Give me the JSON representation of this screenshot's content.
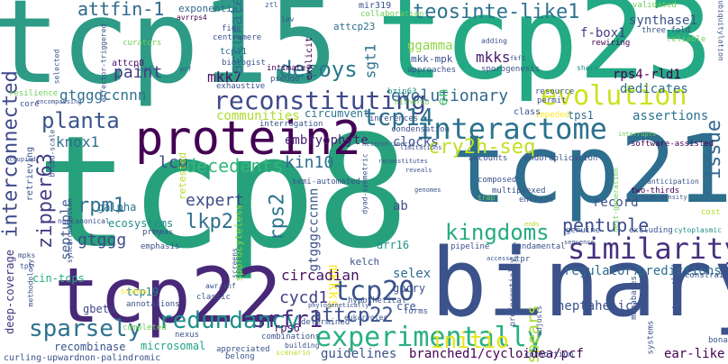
{
  "title": "",
  "palette": {
    "dark_purple": "#440154",
    "purple": "#482878",
    "indigo": "#3e4a89",
    "blue": "#31688e",
    "teal": "#26828e",
    "teal_green": "#1f9e89",
    "green": "#35b779",
    "light_green": "#6ece58",
    "yellow_green": "#b5de2b",
    "yellow": "#fde725"
  },
  "words": [
    {
      "id": "w1",
      "text": "tcp8",
      "color": "#26a17c"
    },
    {
      "id": "w2",
      "text": "tcp15",
      "color": "#2d9b86"
    },
    {
      "id": "w3",
      "text": "tcp23",
      "color": "#23a983"
    },
    {
      "id": "w4",
      "text": "tcp21",
      "color": "#2e6e8e"
    },
    {
      "id": "w5",
      "text": "binary",
      "color": "#3b528b"
    },
    {
      "id": "w6",
      "text": "tcp22",
      "color": "#482878"
    },
    {
      "id": "w7",
      "text": "protein2",
      "color": "#440154"
    },
    {
      "id": "w8",
      "text": "similarity",
      "color": "#46307e"
    },
    {
      "id": "w9",
      "text": "experimentally",
      "color": "#2ab07f"
    },
    {
      "id": "w10",
      "text": "reconstituting",
      "color": "#3e4a89"
    },
    {
      "id": "w11",
      "text": "interactome",
      "color": "#2c728e"
    },
    {
      "id": "w12",
      "text": "evolution",
      "color": "#cde11d"
    },
    {
      "id": "w13",
      "text": "teosinte-like1",
      "color": "#2c738e"
    },
    {
      "id": "w14",
      "text": "tcp14",
      "color": "#2d718e"
    },
    {
      "id": "w15",
      "text": "tcp20",
      "color": "#3b528b"
    },
    {
      "id": "w16",
      "text": "redundancy",
      "color": "#21908c"
    },
    {
      "id": "w17",
      "text": "srfr1",
      "color": "#4a2a80"
    },
    {
      "id": "w18",
      "text": "attcp22",
      "color": "#3b518b"
    },
    {
      "id": "w19",
      "text": "sparsely",
      "color": "#2c728e"
    },
    {
      "id": "w20",
      "text": "kingdoms",
      "color": "#25ab82"
    },
    {
      "id": "w21",
      "text": "pentuple",
      "color": "#3d4e8a"
    },
    {
      "id": "w22",
      "text": "cry2h-seq",
      "color": "#c2df23"
    },
    {
      "id": "w23",
      "text": "decedents",
      "color": "#35b779"
    },
    {
      "id": "w24",
      "text": "zipper63",
      "color": "#433e85"
    },
    {
      "id": "w25",
      "text": "interconnected",
      "color": "#3e4989"
    },
    {
      "id": "w26",
      "text": "planta",
      "color": "#39568c"
    },
    {
      "id": "w27",
      "text": "decoys",
      "color": "#2a778e"
    },
    {
      "id": "w28",
      "text": "attfin-1",
      "color": "#31688e"
    },
    {
      "id": "w29",
      "text": "issue",
      "color": "#31688e"
    },
    {
      "id": "w30",
      "text": "initio",
      "color": "#e5e419"
    },
    {
      "id": "w31",
      "text": "lkp2",
      "color": "#2d708e"
    },
    {
      "id": "w32",
      "text": "rps2",
      "color": "#2c738e"
    },
    {
      "id": "w33",
      "text": "rpm1",
      "color": "#2e6f8e"
    },
    {
      "id": "w34",
      "text": "expert",
      "color": "#3e4989"
    },
    {
      "id": "w35",
      "text": "gtgggcccnnn",
      "color": "#3b528b"
    },
    {
      "id": "w36",
      "text": "gtgggccnnn",
      "color": "#2d718e"
    },
    {
      "id": "w37",
      "text": "gtggg",
      "color": "#3e4a89"
    },
    {
      "id": "w38",
      "text": "mkk7",
      "color": "#471063"
    },
    {
      "id": "w39",
      "text": "mkks",
      "color": "#481b6d"
    },
    {
      "id": "w40",
      "text": "mkkks",
      "color": "#fde725"
    },
    {
      "id": "w41",
      "text": "paint",
      "color": "#443a83"
    },
    {
      "id": "w42",
      "text": "accurate",
      "color": "#2d718e"
    },
    {
      "id": "w43",
      "text": "lcu",
      "color": "#3f4788"
    },
    {
      "id": "w44",
      "text": "kin10",
      "color": "#2e6e8e"
    },
    {
      "id": "w45",
      "text": "knox1",
      "color": "#2e6e8e"
    },
    {
      "id": "w46",
      "text": "embryophyte",
      "color": "#482173"
    },
    {
      "id": "w47",
      "text": "cycd1",
      "color": "#433e85"
    },
    {
      "id": "w48",
      "text": "spears",
      "color": "#a8db34"
    },
    {
      "id": "w49",
      "text": "circadian",
      "color": "#471365"
    },
    {
      "id": "w50",
      "text": "record",
      "color": "#3b528b"
    },
    {
      "id": "w51",
      "text": "septuple",
      "color": "#39568c"
    },
    {
      "id": "w52",
      "text": "evolutionary",
      "color": "#31688e"
    },
    {
      "id": "w53",
      "text": "assertions",
      "color": "#2c728e"
    },
    {
      "id": "w54",
      "text": "communities",
      "color": "#addc30"
    },
    {
      "id": "w55",
      "text": "sgt1",
      "color": "#2c728e"
    },
    {
      "id": "w56",
      "text": "ggamma",
      "color": "#8ed645"
    },
    {
      "id": "w57",
      "text": "rps4-rld1",
      "color": "#440154"
    },
    {
      "id": "w58",
      "text": "synthase1",
      "color": "#3b528b"
    },
    {
      "id": "w59",
      "text": "f-box1",
      "color": "#433e85"
    },
    {
      "id": "w60",
      "text": "dedicates",
      "color": "#2e6e8e"
    },
    {
      "id": "w61",
      "text": "tps1",
      "color": "#2e6e8e"
    },
    {
      "id": "w62",
      "text": "clocks",
      "color": "#3a538b"
    },
    {
      "id": "w63",
      "text": "selex",
      "color": "#2f6c8e"
    },
    {
      "id": "w64",
      "text": "arr16",
      "color": "#21918c"
    },
    {
      "id": "w65",
      "text": "regulator7",
      "color": "#31688e"
    },
    {
      "id": "w66",
      "text": "predictions",
      "color": "#2e6e8e"
    },
    {
      "id": "w67",
      "text": "heptahelical",
      "color": "#3b528b"
    },
    {
      "id": "w68",
      "text": "ear-like",
      "color": "#440154"
    },
    {
      "id": "w69",
      "text": "branched1/cycloidea/pcf",
      "color": "#440154"
    },
    {
      "id": "w70",
      "text": "guidelines",
      "color": "#3b528b"
    },
    {
      "id": "w71",
      "text": "microsomal",
      "color": "#20a386"
    },
    {
      "id": "w72",
      "text": "recombinase",
      "color": "#39558c"
    },
    {
      "id": "w73",
      "text": "curling-upward",
      "color": "#3b528b"
    },
    {
      "id": "w74",
      "text": "non-palindromic",
      "color": "#3b528b"
    },
    {
      "id": "w75",
      "text": "deep-coverage",
      "color": "#46337e"
    },
    {
      "id": "w76",
      "text": "cin-tcps",
      "color": "#25ac82"
    },
    {
      "id": "w77",
      "text": "gbeta",
      "color": "#404688"
    },
    {
      "id": "w78",
      "text": "attcp23",
      "color": "#2e6e8e"
    },
    {
      "id": "w79",
      "text": "attcp8",
      "color": "#471063"
    },
    {
      "id": "w80",
      "text": "tcp11",
      "color": "#2c728e"
    },
    {
      "id": "w81",
      "text": "mkk-mpk",
      "color": "#3b528b"
    },
    {
      "id": "w82",
      "text": "ecosystems",
      "color": "#228c8d"
    },
    {
      "id": "w83",
      "text": "galpha",
      "color": "#2c728e"
    },
    {
      "id": "w84",
      "text": "retrieving",
      "color": "#3b528b"
    },
    {
      "id": "w85",
      "text": "tcp19",
      "color": "#26818e"
    },
    {
      "id": "w86",
      "text": "ab",
      "color": "#3b528b"
    },
    {
      "id": "w87",
      "text": "en",
      "color": "#48c16e"
    },
    {
      "id": "w88",
      "text": "cre",
      "color": "#3b528b"
    },
    {
      "id": "w89",
      "text": "rps6",
      "color": "#48186a"
    },
    {
      "id": "w90",
      "text": "kelch",
      "color": "#3b528b"
    },
    {
      "id": "w91",
      "text": "gpcry",
      "color": "#3b528b"
    },
    {
      "id": "w92",
      "text": "hypothetical",
      "color": "#3b528b"
    },
    {
      "id": "w93",
      "text": "sporocyteless",
      "color": "#8bd646"
    },
    {
      "id": "w94",
      "text": "exponential",
      "color": "#31688e"
    },
    {
      "id": "w95",
      "text": "mir319",
      "color": "#3b528b"
    },
    {
      "id": "w96",
      "text": "collaboration",
      "color": "#6ece58"
    },
    {
      "id": "w97",
      "text": "explicit",
      "color": "#440154"
    },
    {
      "id": "w98",
      "text": "circumvent",
      "color": "#2c728e"
    },
    {
      "id": "w99",
      "text": "retested",
      "color": "#b5de2b"
    },
    {
      "id": "w100",
      "text": "validated",
      "color": "#6ece58"
    },
    {
      "id": "w101",
      "text": "three-fold",
      "color": "#3b528b"
    },
    {
      "id": "w102",
      "text": "reliable",
      "color": "#6ece58"
    },
    {
      "id": "w103",
      "text": "rewiring",
      "color": "#440154"
    },
    {
      "id": "w104",
      "text": "share",
      "color": "#21908c"
    },
    {
      "id": "w105",
      "text": "adding",
      "color": "#3b528b"
    },
    {
      "id": "w106",
      "text": "sporogenesis",
      "color": "#3b528b"
    },
    {
      "id": "w107",
      "text": "approaches",
      "color": "#3b528b"
    },
    {
      "id": "w108",
      "text": "intimate",
      "color": "#440154"
    },
    {
      "id": "w109",
      "text": "pseudo",
      "color": "#3b528b"
    },
    {
      "id": "w110",
      "text": "fide",
      "color": "#3b528b"
    },
    {
      "id": "w111",
      "text": "biologist",
      "color": "#3b528b"
    },
    {
      "id": "w112",
      "text": "centromere",
      "color": "#3b528b"
    },
    {
      "id": "w113",
      "text": "curators",
      "color": "#6ece58"
    },
    {
      "id": "w114",
      "text": "effector-triggered",
      "color": "#3b528b"
    },
    {
      "id": "w115",
      "text": "avrrps4",
      "color": "#440154"
    },
    {
      "id": "w116",
      "text": "exhaustive",
      "color": "#3b528b"
    },
    {
      "id": "w117",
      "text": "selected",
      "color": "#3b528b"
    },
    {
      "id": "w118",
      "text": "resilience",
      "color": "#6ece58"
    },
    {
      "id": "w119",
      "text": "core",
      "color": "#3b528b"
    },
    {
      "id": "w120",
      "text": "encompassing",
      "color": "#3b528b"
    },
    {
      "id": "w121",
      "text": "interrogation",
      "color": "#3b528b"
    },
    {
      "id": "w122",
      "text": "inferences",
      "color": "#3b528b"
    },
    {
      "id": "w123",
      "text": "bzip63",
      "color": "#21908c"
    },
    {
      "id": "w124",
      "text": "hitherto",
      "color": "#6ece58"
    },
    {
      "id": "w125",
      "text": "resource",
      "color": "#3b528b"
    },
    {
      "id": "w126",
      "text": "permit",
      "color": "#3b528b"
    },
    {
      "id": "w127",
      "text": "impeded",
      "color": "#fde725"
    },
    {
      "id": "w128",
      "text": "class",
      "color": "#3b528b"
    },
    {
      "id": "w129",
      "text": "condensation",
      "color": "#3b528b"
    },
    {
      "id": "w130",
      "text": "limitations",
      "color": "#3b528b"
    },
    {
      "id": "w131",
      "text": "heterotrimeric",
      "color": "#3b528b"
    },
    {
      "id": "w132",
      "text": "broad-scale",
      "color": "#3b528b"
    },
    {
      "id": "w133",
      "text": "occupied",
      "color": "#3b528b"
    },
    {
      "id": "w134",
      "text": "semi-automated",
      "color": "#3b528b"
    },
    {
      "id": "w135",
      "text": "dyad-symmetric",
      "color": "#3b528b"
    },
    {
      "id": "w136",
      "text": "accounts",
      "color": "#3b528b"
    },
    {
      "id": "w137",
      "text": "endoreplication",
      "color": "#3b528b"
    },
    {
      "id": "w138",
      "text": "software-assisted",
      "color": "#440154"
    },
    {
      "id": "w139",
      "text": "anticipation",
      "color": "#3b528b"
    },
    {
      "id": "w140",
      "text": "two-thirds",
      "color": "#440154"
    },
    {
      "id": "w141",
      "text": "high-density",
      "color": "#3b528b"
    },
    {
      "id": "w142",
      "text": "next-generation",
      "color": "#6ece58"
    },
    {
      "id": "w143",
      "text": "composed",
      "color": "#3b528b"
    },
    {
      "id": "w144",
      "text": "multiplexed",
      "color": "#3b528b"
    },
    {
      "id": "w145",
      "text": "entrain",
      "color": "#3b528b"
    },
    {
      "id": "w146",
      "text": "trap",
      "color": "#6ece58"
    },
    {
      "id": "w147",
      "text": "cost",
      "color": "#b5de2b"
    },
    {
      "id": "w148",
      "text": "cytoplasmic",
      "color": "#21908c"
    },
    {
      "id": "w149",
      "text": "excluding",
      "color": "#3b528b"
    },
    {
      "id": "w150",
      "text": "genuine",
      "color": "#3b528b"
    },
    {
      "id": "w151",
      "text": "sequence",
      "color": "#3b528b"
    },
    {
      "id": "w152",
      "text": "fundamental",
      "color": "#3b528b"
    },
    {
      "id": "w153",
      "text": "pipeline",
      "color": "#3b528b"
    },
    {
      "id": "w154",
      "text": "tpr",
      "color": "#3b528b"
    },
    {
      "id": "w155",
      "text": "constraints",
      "color": "#3b528b"
    },
    {
      "id": "w156",
      "text": "megabases",
      "color": "#3b528b"
    },
    {
      "id": "w157",
      "text": "strengths",
      "color": "#3b528b"
    },
    {
      "id": "w158",
      "text": "systems",
      "color": "#3b528b"
    },
    {
      "id": "w159",
      "text": "adjusts",
      "color": "#3b528b"
    },
    {
      "id": "w160",
      "text": "preferentially",
      "color": "#3b528b"
    },
    {
      "id": "w161",
      "text": "forms",
      "color": "#3b528b"
    },
    {
      "id": "w162",
      "text": "phylogenetically",
      "color": "#3b528b"
    },
    {
      "id": "w163",
      "text": "eukaryotes",
      "color": "#3b528b"
    },
    {
      "id": "w164",
      "text": "determined",
      "color": "#3b528b"
    },
    {
      "id": "w165",
      "text": "consortium",
      "color": "#3b528b"
    },
    {
      "id": "w166",
      "text": "bona",
      "color": "#3b528b"
    },
    {
      "id": "w167",
      "text": "completed",
      "color": "#6ece58"
    },
    {
      "id": "w168",
      "text": "nexus",
      "color": "#3b528b"
    },
    {
      "id": "w169",
      "text": "combinations",
      "color": "#3b528b"
    },
    {
      "id": "w170",
      "text": "appreciated",
      "color": "#3b528b"
    },
    {
      "id": "w171",
      "text": "belong",
      "color": "#3b528b"
    },
    {
      "id": "w172",
      "text": "building",
      "color": "#3b528b"
    },
    {
      "id": "w173",
      "text": "scenario",
      "color": "#b5de2b"
    },
    {
      "id": "w174",
      "text": "classic",
      "color": "#3b528b"
    },
    {
      "id": "w175",
      "text": "prey",
      "color": "#3b528b"
    },
    {
      "id": "w176",
      "text": "emphasis",
      "color": "#3b528b"
    },
    {
      "id": "w177",
      "text": "noncanonical",
      "color": "#3b528b"
    },
    {
      "id": "w178",
      "text": "synchronization",
      "color": "#3b528b"
    },
    {
      "id": "w179",
      "text": "methodology",
      "color": "#3b528b"
    },
    {
      "id": "w180",
      "text": "annotations",
      "color": "#3b528b"
    },
    {
      "id": "w181",
      "text": "mpks",
      "color": "#3b528b"
    },
    {
      "id": "w182",
      "text": "tpl",
      "color": "#3b528b"
    },
    {
      "id": "w183",
      "text": "brahma",
      "color": "#fde725"
    },
    {
      "id": "w184",
      "text": "screens",
      "color": "#3b528b"
    },
    {
      "id": "w185",
      "text": "awr/snf",
      "color": "#3b528b"
    },
    {
      "id": "w186",
      "text": "trees",
      "color": "#3b528b"
    },
    {
      "id": "w187",
      "text": "ztl",
      "color": "#3b528b"
    },
    {
      "id": "w188",
      "text": "lov",
      "color": "#3b528b"
    },
    {
      "id": "w189",
      "text": "fkf1",
      "color": "#3b528b"
    },
    {
      "id": "w190",
      "text": "ubiquitylation",
      "color": "#3b528b"
    },
    {
      "id": "w191",
      "text": "prf",
      "color": "#3b528b"
    },
    {
      "id": "w192",
      "text": "ssk1",
      "color": "#3b528b"
    },
    {
      "id": "w193",
      "text": "reconstitutes",
      "color": "#3b528b"
    },
    {
      "id": "w194",
      "text": "interrupts",
      "color": "#6ece58"
    },
    {
      "id": "w195",
      "text": "ends",
      "color": "#b5de2b"
    },
    {
      "id": "w196",
      "text": "accessed",
      "color": "#3b528b"
    },
    {
      "id": "w197",
      "text": "genomes",
      "color": "#3b528b"
    },
    {
      "id": "w198",
      "text": "reveals",
      "color": "#3b528b"
    }
  ]
}
